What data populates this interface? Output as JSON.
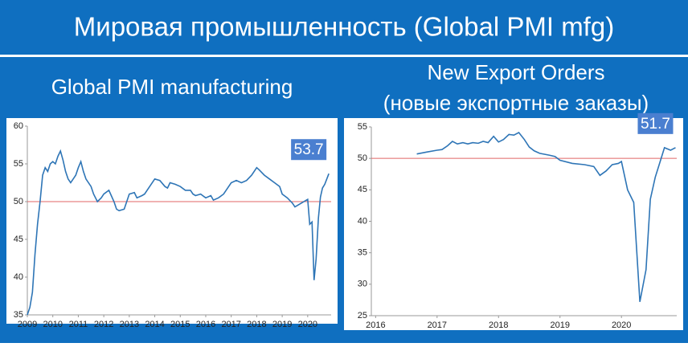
{
  "title": "Мировая промышленность (Global PMI mfg)",
  "chart_data": [
    {
      "type": "line",
      "title": "Global PMI manufacturing",
      "color": "#2e75b6",
      "x": [
        2009.0,
        2009.1,
        2009.2,
        2009.3,
        2009.4,
        2009.5,
        2009.6,
        2009.7,
        2009.8,
        2009.9,
        2010.0,
        2010.1,
        2010.2,
        2010.3,
        2010.4,
        2010.5,
        2010.6,
        2010.7,
        2010.8,
        2010.9,
        2011.0,
        2011.1,
        2011.2,
        2011.3,
        2011.5,
        2011.6,
        2011.75,
        2011.9,
        2012.0,
        2012.2,
        2012.4,
        2012.5,
        2012.6,
        2012.8,
        2012.9,
        2013.0,
        2013.2,
        2013.3,
        2013.5,
        2013.6,
        2013.8,
        2014.0,
        2014.2,
        2014.4,
        2014.5,
        2014.6,
        2014.8,
        2015.0,
        2015.2,
        2015.4,
        2015.5,
        2015.6,
        2015.8,
        2016.0,
        2016.2,
        2016.3,
        2016.5,
        2016.7,
        2016.9,
        2017.0,
        2017.2,
        2017.4,
        2017.6,
        2017.8,
        2018.0,
        2018.1,
        2018.3,
        2018.5,
        2018.7,
        2018.9,
        2019.0,
        2019.2,
        2019.4,
        2019.5,
        2019.7,
        2019.9,
        2020.0,
        2020.08,
        2020.17,
        2020.25,
        2020.33,
        2020.42,
        2020.5,
        2020.58,
        2020.67,
        2020.83
      ],
      "values": [
        35.0,
        36,
        38,
        43,
        47,
        50,
        53.5,
        54.5,
        54,
        55,
        55.3,
        55,
        56,
        56.7,
        55.5,
        54,
        53,
        52.5,
        53,
        53.5,
        54.5,
        55.3,
        54,
        53,
        52,
        51,
        50,
        50.5,
        51,
        51.5,
        50,
        49,
        48.8,
        49,
        50,
        51,
        51.2,
        50.5,
        50.8,
        51,
        52,
        53,
        52.8,
        52,
        51.8,
        52.5,
        52.3,
        52,
        51.5,
        51.5,
        51,
        50.8,
        51,
        50.5,
        50.8,
        50.2,
        50.5,
        51,
        52,
        52.5,
        52.8,
        52.5,
        52.8,
        53.5,
        54.5,
        54.2,
        53.5,
        53,
        52.5,
        52,
        51,
        50.5,
        49.8,
        49.3,
        49.7,
        50.1,
        50.3,
        47,
        47.3,
        39.6,
        42.4,
        47.8,
        50.6,
        51.8,
        52.3,
        53.7
      ],
      "xlim": [
        2009,
        2020.92
      ],
      "xticks": [
        2009,
        2010,
        2011,
        2012,
        2013,
        2014,
        2015,
        2016,
        2017,
        2018,
        2019,
        2020
      ],
      "ylim": [
        35,
        60
      ],
      "yticks": [
        35,
        40,
        45,
        50,
        55,
        60
      ],
      "reference_line": {
        "value": 50,
        "color": "#e06666"
      },
      "grid": false
    },
    {
      "type": "line",
      "title": "New Export Orders",
      "subtitle": "(новые экспортные заказы)",
      "color": "#2e75b6",
      "x": [
        2016.67,
        2016.83,
        2017.0,
        2017.08,
        2017.17,
        2017.25,
        2017.33,
        2017.42,
        2017.5,
        2017.58,
        2017.67,
        2017.75,
        2017.83,
        2017.92,
        2018.0,
        2018.08,
        2018.17,
        2018.25,
        2018.33,
        2018.42,
        2018.5,
        2018.58,
        2018.67,
        2018.83,
        2018.92,
        2019.0,
        2019.2,
        2019.4,
        2019.55,
        2019.65,
        2019.75,
        2019.85,
        2019.95,
        2020.0,
        2020.1,
        2020.2,
        2020.3,
        2020.4,
        2020.47,
        2020.55,
        2020.63,
        2020.7,
        2020.8,
        2020.88
      ],
      "values": [
        50.7,
        51,
        51.3,
        51.4,
        52,
        52.7,
        52.3,
        52.5,
        52.3,
        52.5,
        52.4,
        52.7,
        52.5,
        53.5,
        52.6,
        53,
        53.8,
        53.7,
        54.1,
        53,
        51.8,
        51.2,
        50.8,
        50.5,
        50.3,
        49.7,
        49.2,
        49,
        48.7,
        47.3,
        48,
        49,
        49.2,
        49.5,
        45,
        43,
        27.2,
        32.3,
        43.5,
        47,
        49.5,
        51.7,
        51.3,
        51.7
      ],
      "xlim": [
        2015.93,
        2020.9
      ],
      "xticks": [
        2016,
        2017,
        2018,
        2019,
        2020
      ],
      "ylim": [
        25,
        55
      ],
      "yticks": [
        25,
        30,
        35,
        40,
        45,
        50,
        55
      ],
      "reference_line": {
        "value": 50,
        "color": "#e06666"
      },
      "grid": false
    }
  ]
}
